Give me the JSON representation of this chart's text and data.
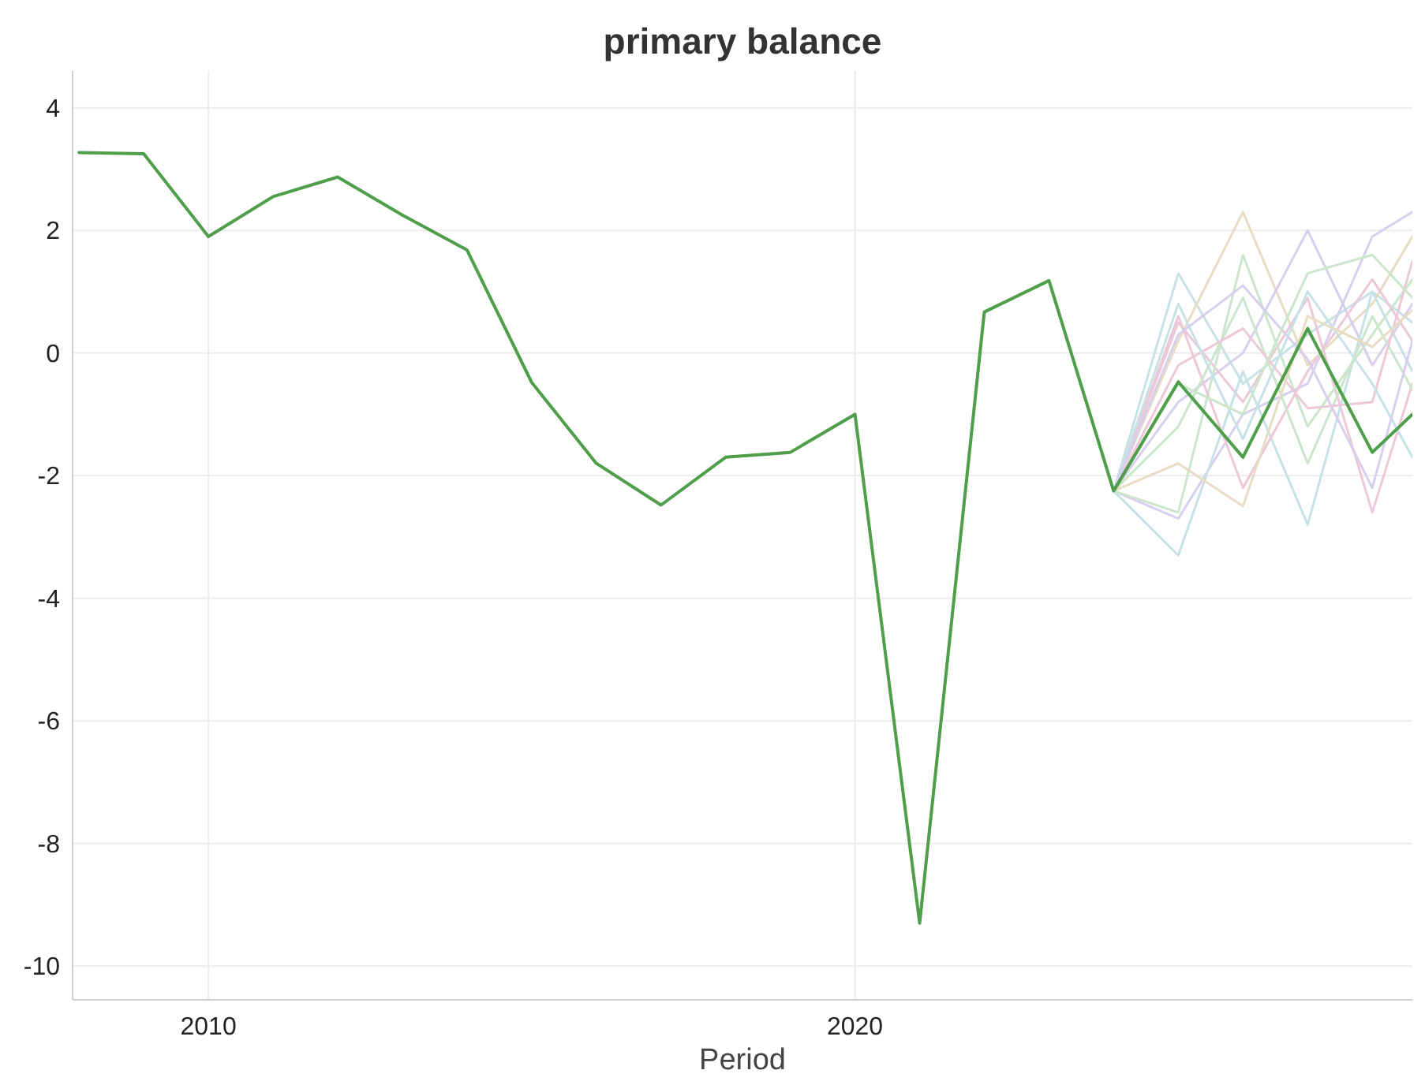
{
  "chart_data": {
    "type": "line",
    "title": "primary balance",
    "xlabel": "Period",
    "xlim": [
      2007.9,
      2028.62
    ],
    "xticks": [
      2010,
      2020
    ],
    "ylim": [
      -10.55,
      4.6
    ],
    "yticks": [
      -10,
      -8,
      -6,
      -4,
      -2,
      0,
      2,
      4
    ],
    "grid": true,
    "marker": "none",
    "line_style": "solid",
    "series": [
      {
        "color": "#c6e2e6",
        "x": [
          2024,
          2025,
          2026,
          2027,
          2028,
          2028.62
        ],
        "values": [
          -2.25,
          1.3,
          -0.5,
          0.3,
          1.0,
          0.5
        ]
      },
      {
        "color": "#e8dcc2",
        "x": [
          2024,
          2025,
          2026,
          2027,
          2028,
          2028.62
        ],
        "values": [
          -2.25,
          0.2,
          2.3,
          -0.2,
          0.8,
          1.9
        ]
      },
      {
        "color": "#d8cfee",
        "x": [
          2024,
          2025,
          2026,
          2027,
          2028,
          2028.62
        ],
        "values": [
          -2.25,
          -0.8,
          0.0,
          2.0,
          -0.2,
          0.8
        ]
      },
      {
        "color": "#d8cfee",
        "x": [
          2024,
          2025,
          2026,
          2027,
          2028,
          2028.62
        ],
        "values": [
          -2.25,
          -2.7,
          -1.0,
          -0.5,
          1.9,
          2.3
        ]
      },
      {
        "color": "#ecc8d8",
        "x": [
          2024,
          2025,
          2026,
          2027,
          2028,
          2028.62
        ],
        "values": [
          -2.25,
          0.5,
          -0.8,
          0.9,
          -2.6,
          -0.5
        ]
      },
      {
        "color": "#cbe6cb",
        "x": [
          2024,
          2025,
          2026,
          2027,
          2028,
          2028.62
        ],
        "values": [
          -2.25,
          -2.6,
          1.6,
          -1.2,
          0.3,
          1.2
        ]
      },
      {
        "color": "#c6e2e6",
        "x": [
          2024,
          2025,
          2026,
          2027,
          2028,
          2028.62
        ],
        "values": [
          -2.25,
          -3.3,
          -0.3,
          -2.8,
          1.0,
          -0.3
        ]
      },
      {
        "color": "#ecc8d8",
        "x": [
          2024,
          2025,
          2026,
          2027,
          2028,
          2028.62
        ],
        "values": [
          -2.25,
          0.6,
          -2.2,
          -0.3,
          1.2,
          0.2
        ]
      },
      {
        "color": "#cbe6cb",
        "x": [
          2024,
          2025,
          2026,
          2027,
          2028,
          2028.62
        ],
        "values": [
          -2.25,
          -1.2,
          0.9,
          -1.8,
          0.6,
          -0.6
        ]
      },
      {
        "color": "#ecc8d8",
        "x": [
          2024,
          2025,
          2026,
          2027,
          2028,
          2028.62
        ],
        "values": [
          -2.25,
          -0.2,
          0.4,
          -0.9,
          -0.8,
          1.5
        ]
      },
      {
        "color": "#c6e2e6",
        "x": [
          2024,
          2025,
          2026,
          2027,
          2028,
          2028.62
        ],
        "values": [
          -2.25,
          0.8,
          -1.4,
          1.0,
          -0.5,
          -1.7
        ]
      },
      {
        "color": "#e8dcc2",
        "x": [
          2024,
          2025,
          2026,
          2027,
          2028,
          2028.62
        ],
        "values": [
          -2.25,
          -1.8,
          -2.5,
          0.6,
          0.1,
          0.7
        ]
      },
      {
        "color": "#d8cfee",
        "x": [
          2024,
          2025,
          2026,
          2027,
          2028,
          2028.62
        ],
        "values": [
          -2.25,
          0.3,
          1.1,
          -0.1,
          -2.2,
          0.2
        ]
      },
      {
        "color": "#cbe6cb",
        "x": [
          2024,
          2025,
          2026,
          2027,
          2028,
          2028.62
        ],
        "values": [
          -2.25,
          -0.5,
          -1.0,
          1.3,
          1.6,
          0.9
        ]
      },
      {
        "color": "#4e9e4a",
        "x": [
          2008,
          2009,
          2010,
          2011,
          2012,
          2013,
          2014,
          2015,
          2016,
          2017,
          2018,
          2019,
          2020,
          2021,
          2022,
          2023,
          2024,
          2025,
          2026,
          2027,
          2028,
          2028.62
        ],
        "values": [
          3.27,
          3.25,
          1.9,
          2.55,
          2.87,
          2.25,
          1.68,
          -0.48,
          -1.8,
          -2.48,
          -1.7,
          -1.62,
          -1.0,
          -9.3,
          0.67,
          1.18,
          -2.25,
          -0.47,
          -1.7,
          0.4,
          -1.62,
          -1.0
        ]
      }
    ]
  }
}
